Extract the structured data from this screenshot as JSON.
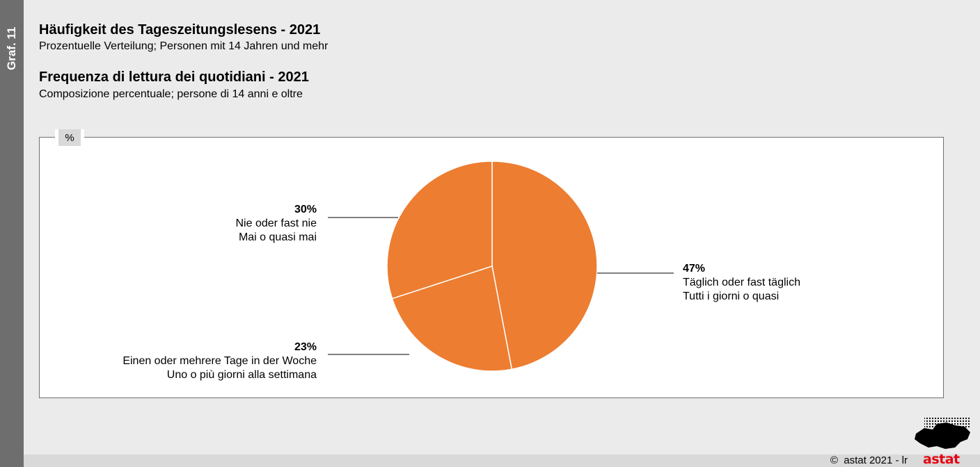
{
  "side_label": "Graf. 11",
  "title_de": "Häufigkeit des Tageszeitungslesens - 2021",
  "subtitle_de": "Prozentuelle Verteilung; Personen mit 14 Jahren und mehr",
  "title_it": "Frequenza di lettura dei quotidiani - 2021",
  "subtitle_it": "Composizione percentuale; persone di 14 anni e oltre",
  "unit": "%",
  "copyright": "astat 2021 - lr",
  "logo_text": "astat",
  "colors": {
    "slice": "#ed7d31",
    "border": "#707070"
  },
  "chart_data": {
    "type": "pie",
    "title": "Häufigkeit des Tageszeitungslesens - 2021",
    "slices": [
      {
        "value": 47,
        "label_pct": "47%",
        "label_de": "Täglich oder fast täglich",
        "label_it": "Tutti i giorni o quasi"
      },
      {
        "value": 23,
        "label_pct": "23%",
        "label_de": "Einen oder mehrere Tage in der Woche",
        "label_it": "Uno o più giorni alla settimana"
      },
      {
        "value": 30,
        "label_pct": "30%",
        "label_de": "Nie oder fast nie",
        "label_it": "Mai o quasi mai"
      }
    ]
  }
}
